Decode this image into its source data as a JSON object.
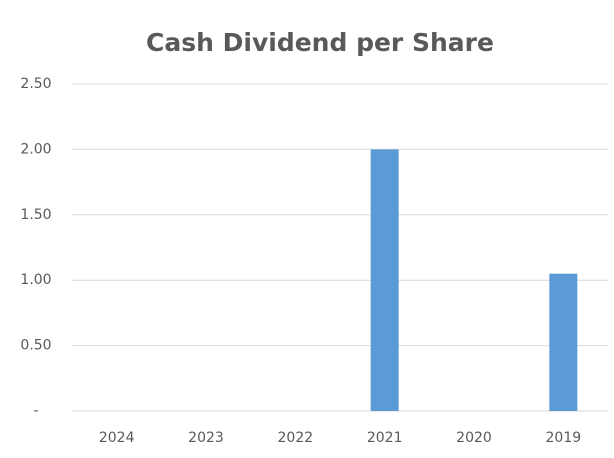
{
  "chart_data": {
    "type": "bar",
    "title": "Cash Dividend per Share",
    "categories": [
      "2024",
      "2023",
      "2022",
      "2021",
      "2020",
      "2019"
    ],
    "values": [
      0,
      0,
      0,
      2.0,
      0,
      1.05
    ],
    "color": "#5b9bd5",
    "ylim": [
      0,
      2.5
    ],
    "yticks": [
      {
        "value": 0,
        "label": "-"
      },
      {
        "value": 0.5,
        "label": "0.50"
      },
      {
        "value": 1,
        "label": "1.00"
      },
      {
        "value": 1.5,
        "label": "1.50"
      },
      {
        "value": 2,
        "label": "2.00"
      },
      {
        "value": 2.5,
        "label": "2.50"
      }
    ],
    "grid": true
  }
}
